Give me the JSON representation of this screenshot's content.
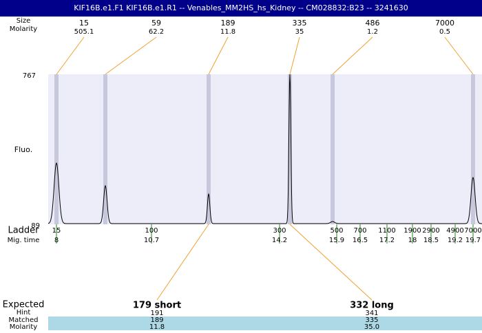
{
  "header": {
    "title": "KIF16B.e1.F1  KIF16B.e1.R1 -- Venables_MM2HS_hs_Kidney -- CM028832:B23 -- 3241630"
  },
  "top": {
    "size_label": "Size",
    "molarity_label": "Molarity",
    "peaks": [
      {
        "size": "15",
        "molarity": "505.1"
      },
      {
        "size": "59",
        "molarity": "62.2"
      },
      {
        "size": "189",
        "molarity": "11.8"
      },
      {
        "size": "335",
        "molarity": "35"
      },
      {
        "size": "486",
        "molarity": "1.2"
      },
      {
        "size": "7000",
        "molarity": "0.5"
      }
    ]
  },
  "plot": {
    "y_top": "767",
    "y_bottom": "89",
    "y_label": "Fluo."
  },
  "ladder": {
    "label": "Ladder",
    "time_label": "Mig. time",
    "items": [
      {
        "size": "15",
        "time": "8"
      },
      {
        "size": "100",
        "time": "10.7"
      },
      {
        "size": "300",
        "time": "14.2"
      },
      {
        "size": "500",
        "time": "15.9"
      },
      {
        "size": "700",
        "time": "16.5"
      },
      {
        "size": "1100",
        "time": "17.2"
      },
      {
        "size": "1900",
        "time": "18"
      },
      {
        "size": "2900",
        "time": "18.5"
      },
      {
        "size": "4900",
        "time": "19.2"
      },
      {
        "size": "7000",
        "time": "19.7"
      }
    ]
  },
  "expected": {
    "label": "Expected",
    "hint_label": "Hint",
    "matched_label": "Matched",
    "molarity_label": "Molarity",
    "products": [
      {
        "name": "179 short",
        "hint": "191",
        "matched": "189",
        "molarity": "11.8"
      },
      {
        "name": "332 long",
        "hint": "341",
        "matched": "335",
        "molarity": "35.0"
      }
    ]
  }
}
